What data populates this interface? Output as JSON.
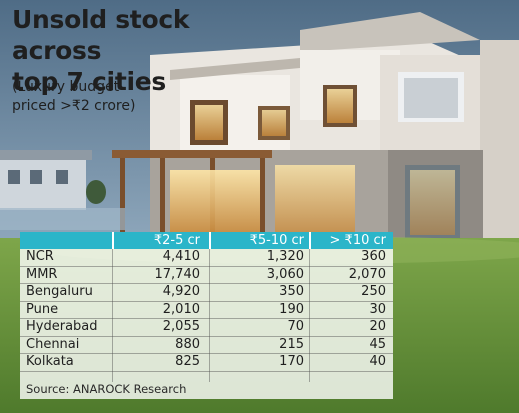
{
  "title_lines": [
    "Unsold stock across",
    "top 7 cities"
  ],
  "subtitle_lines": [
    "(Luxury budget",
    "priced >₹2 crore)"
  ],
  "table": {
    "columns": [
      "",
      "₹2-5 cr",
      "₹5-10 cr",
      "> ₹10 cr"
    ],
    "rows": [
      [
        "NCR",
        "4,410",
        "1,320",
        "360"
      ],
      [
        "MMR",
        "17,740",
        "3,060",
        "2,070"
      ],
      [
        "Bengaluru",
        "4,920",
        "350",
        "250"
      ],
      [
        "Pune",
        "2,010",
        "190",
        "30"
      ],
      [
        "Hyderabad",
        "2,055",
        "70",
        "20"
      ],
      [
        "Chennai",
        "880",
        "215",
        "45"
      ],
      [
        "Kolkata",
        "825",
        "170",
        "40"
      ]
    ]
  },
  "source": "Source: ANAROCK Research",
  "colors": {
    "header_bg": "#2bb5c9",
    "header_text": "#ffffff",
    "body_text": "#1f1f1f"
  }
}
